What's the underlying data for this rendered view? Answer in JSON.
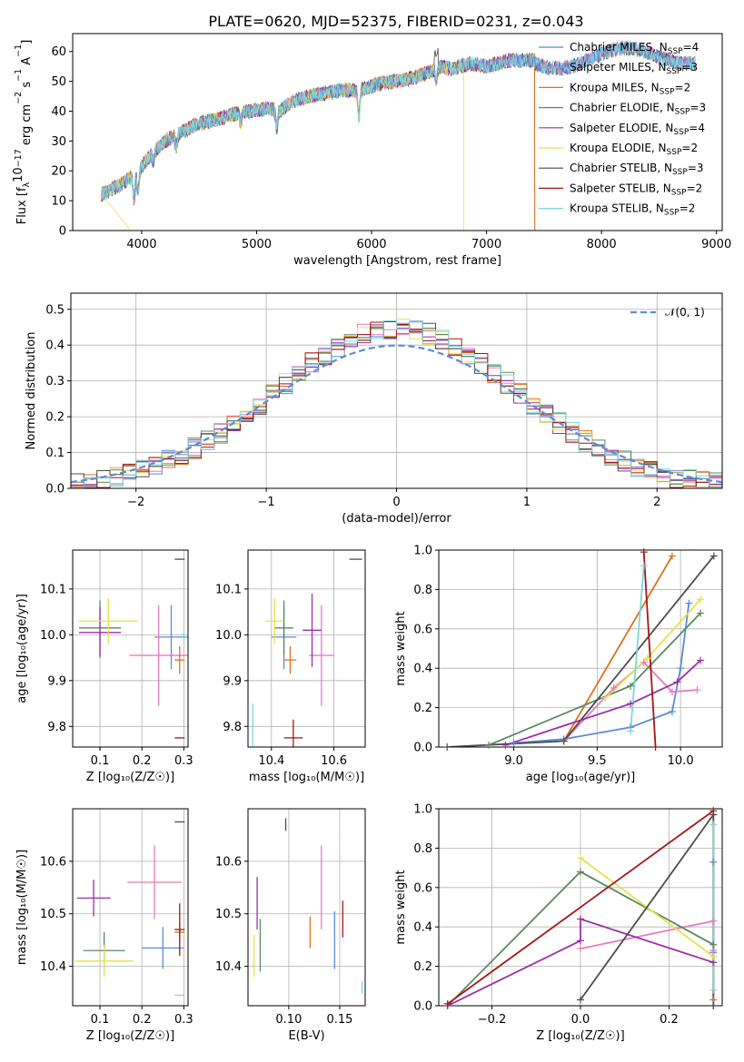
{
  "title": "PLATE=0620, MJD=52375, FIBERID=0231, z=0.043",
  "colors": {
    "Chabrier MILES": "#5b8bd6",
    "Salpeter MILES": "#e67bbf",
    "Kroupa MILES": "#d9731c",
    "Chabrier ELODIE": "#5a8a5e",
    "Salpeter ELODIE": "#9a2fa8",
    "Kroupa ELODIE": "#e8e04a",
    "Chabrier STELIB": "#4d4d4d",
    "Salpeter STELIB": "#a51515",
    "Kroupa STELIB": "#7fd6e0"
  },
  "chart_data": [
    {
      "id": "spectrum",
      "type": "line",
      "xlabel": "wavelength [Angstrom, rest frame]",
      "ylabel_parts": [
        "Flux [f",
        "λ",
        "10",
        "−17",
        " erg cm",
        "−2",
        " s",
        "−1",
        " A",
        "−1",
        "]"
      ],
      "xlim": [
        3400,
        9050
      ],
      "ylim": [
        0,
        66
      ],
      "xticks": [
        4000,
        5000,
        6000,
        7000,
        8000,
        9000
      ],
      "yticks": [
        0,
        10,
        20,
        30,
        40,
        50,
        60
      ],
      "continuum": [
        [
          3650,
          12
        ],
        [
          3800,
          15
        ],
        [
          3950,
          19
        ],
        [
          4050,
          24
        ],
        [
          4200,
          30
        ],
        [
          4350,
          33
        ],
        [
          4500,
          36
        ],
        [
          4650,
          37
        ],
        [
          4800,
          39
        ],
        [
          4950,
          40
        ],
        [
          5100,
          41
        ],
        [
          5200,
          40
        ],
        [
          5300,
          43
        ],
        [
          5450,
          45
        ],
        [
          5600,
          46
        ],
        [
          5750,
          47
        ],
        [
          5900,
          47
        ],
        [
          6050,
          49
        ],
        [
          6200,
          50
        ],
        [
          6350,
          51
        ],
        [
          6500,
          53
        ],
        [
          6600,
          55
        ],
        [
          6700,
          54
        ],
        [
          6850,
          56
        ],
        [
          7000,
          55
        ],
        [
          7200,
          57
        ],
        [
          7400,
          57
        ]
      ],
      "legend": [
        {
          "name": "Chabrier MILES",
          "nssp": "4"
        },
        {
          "name": "Salpeter MILES",
          "nssp": "3"
        },
        {
          "name": "Kroupa MILES",
          "nssp": "2"
        },
        {
          "name": "Chabrier ELODIE",
          "nssp": "3"
        },
        {
          "name": "Salpeter ELODIE",
          "nssp": "4"
        },
        {
          "name": "Kroupa ELODIE",
          "nssp": "2"
        },
        {
          "name": "Chabrier STELIB",
          "nssp": "3"
        },
        {
          "name": "Salpeter STELIB",
          "nssp": "2"
        },
        {
          "name": "Kroupa STELIB",
          "nssp": "2"
        }
      ],
      "legend_loc": "upper right",
      "grid": false
    },
    {
      "id": "residuals",
      "type": "histogram",
      "xlabel": "(data-model)/error",
      "ylabel": "Normed distribution",
      "xlim": [
        -2.5,
        2.5
      ],
      "ylim": [
        0,
        0.545
      ],
      "xticks": [
        -2,
        -1,
        0,
        1,
        2
      ],
      "yticks": [
        0.0,
        0.1,
        0.2,
        0.3,
        0.4,
        0.5
      ],
      "reference_curve": "𝒩(0, 1)",
      "legend_loc": "upper right",
      "grid": true,
      "bin_width": 0.1
    },
    {
      "id": "age_vs_Z",
      "type": "errorbar",
      "xlabel": "Z [log₁₀(Z/Z☉)]",
      "ylabel": "age  [log₁₀(age/yr)]",
      "xlim": [
        0.035,
        0.31
      ],
      "ylim": [
        9.755,
        10.185
      ],
      "xticks": [
        0.1,
        0.2,
        0.3
      ],
      "yticks": [
        9.8,
        9.9,
        10.0,
        10.1
      ],
      "grid": true,
      "points": [
        {
          "model": "Chabrier MILES",
          "x": 0.27,
          "xerr": 0.04,
          "y": 9.995,
          "yerr": 0.07
        },
        {
          "model": "Salpeter MILES",
          "x": 0.24,
          "xerr": 0.07,
          "y": 9.955,
          "yerr": 0.11
        },
        {
          "model": "Kroupa MILES",
          "x": 0.29,
          "xerr": 0.012,
          "y": 9.945,
          "yerr": 0.03
        },
        {
          "model": "Chabrier ELODIE",
          "x": 0.1,
          "xerr": 0.05,
          "y": 10.015,
          "yerr": 0.06
        },
        {
          "model": "Salpeter ELODIE",
          "x": 0.1,
          "xerr": 0.05,
          "y": 10.005,
          "yerr": 0.055
        },
        {
          "model": "Kroupa ELODIE",
          "x": 0.12,
          "xerr": 0.07,
          "y": 10.03,
          "yerr": 0.05
        },
        {
          "model": "Chabrier STELIB",
          "x": 0.29,
          "xerr": 0.012,
          "y": 10.165,
          "yerr": 0.0
        },
        {
          "model": "Salpeter STELIB",
          "x": 0.29,
          "xerr": 0.012,
          "y": 9.775,
          "yerr": 0.0
        },
        {
          "model": "Kroupa STELIB",
          "x": 0.3,
          "xerr": 0.004,
          "y": 10.0,
          "yerr": 0.005
        }
      ]
    },
    {
      "id": "age_vs_mass",
      "type": "errorbar",
      "xlabel": "mass [log₁₀(M/M☉)]",
      "ylabel": "",
      "xlim": [
        10.325,
        10.7
      ],
      "ylim": [
        9.755,
        10.185
      ],
      "xticks": [
        10.4,
        10.6
      ],
      "yticks": [
        9.8,
        9.9,
        10.0,
        10.1
      ],
      "grid": true,
      "points": [
        {
          "model": "Chabrier MILES",
          "x": 10.44,
          "xerr": 0.04,
          "y": 9.995,
          "yerr": 0.07
        },
        {
          "model": "Salpeter MILES",
          "x": 10.56,
          "xerr": 0.04,
          "y": 9.955,
          "yerr": 0.11
        },
        {
          "model": "Kroupa MILES",
          "x": 10.46,
          "xerr": 0.02,
          "y": 9.945,
          "yerr": 0.03
        },
        {
          "model": "Chabrier ELODIE",
          "x": 10.44,
          "xerr": 0.03,
          "y": 10.015,
          "yerr": 0.06
        },
        {
          "model": "Salpeter ELODIE",
          "x": 10.53,
          "xerr": 0.03,
          "y": 10.01,
          "yerr": 0.08
        },
        {
          "model": "Kroupa ELODIE",
          "x": 10.41,
          "xerr": 0.03,
          "y": 10.03,
          "yerr": 0.05
        },
        {
          "model": "Chabrier STELIB",
          "x": 10.67,
          "xerr": 0.02,
          "y": 10.165,
          "yerr": 0.0
        },
        {
          "model": "Salpeter STELIB",
          "x": 10.47,
          "xerr": 0.03,
          "y": 9.775,
          "yerr": 0.04
        },
        {
          "model": "Kroupa STELIB",
          "x": 10.34,
          "xerr": 0.005,
          "y": 9.8,
          "yerr": 0.05
        }
      ]
    },
    {
      "id": "weight_vs_age",
      "type": "line",
      "xlabel": "age  [log₁₀(age/yr)]",
      "ylabel": "mass weight",
      "xlim": [
        8.55,
        10.25
      ],
      "ylim": [
        0,
        1
      ],
      "xticks": [
        9.0,
        9.5,
        10.0
      ],
      "yticks": [
        0.0,
        0.2,
        0.4,
        0.6,
        0.8,
        1.0
      ],
      "grid": true,
      "series": [
        {
          "model": "Chabrier MILES",
          "x": [
            9.0,
            9.3,
            9.7,
            9.95,
            10.0,
            10.05
          ],
          "y": [
            0.02,
            0.04,
            0.1,
            0.18,
            0.4,
            0.73
          ]
        },
        {
          "model": "Salpeter MILES",
          "x": [
            9.3,
            9.6,
            9.78,
            9.95,
            10.1
          ],
          "y": [
            0.03,
            0.3,
            0.43,
            0.28,
            0.29
          ]
        },
        {
          "model": "Kroupa MILES",
          "x": [
            9.3,
            9.95
          ],
          "y": [
            0.03,
            0.97
          ]
        },
        {
          "model": "Chabrier ELODIE",
          "x": [
            8.85,
            9.7,
            10.12
          ],
          "y": [
            0.01,
            0.31,
            0.68
          ]
        },
        {
          "model": "Salpeter ELODIE",
          "x": [
            8.95,
            9.7,
            9.98,
            10.12
          ],
          "y": [
            0.01,
            0.22,
            0.33,
            0.44
          ]
        },
        {
          "model": "Kroupa ELODIE",
          "x": [
            9.55,
            9.8,
            10.12
          ],
          "y": [
            0.25,
            0.45,
            0.75
          ]
        },
        {
          "model": "Chabrier STELIB",
          "x": [
            8.6,
            9.3,
            10.2
          ],
          "y": [
            0.0,
            0.03,
            0.97
          ]
        },
        {
          "model": "Salpeter STELIB",
          "x": [
            9.78,
            9.85
          ],
          "y": [
            0.99,
            0.0
          ]
        },
        {
          "model": "Kroupa STELIB",
          "x": [
            9.7,
            9.78
          ],
          "y": [
            0.08,
            0.92
          ]
        }
      ]
    },
    {
      "id": "mass_vs_Z",
      "type": "errorbar",
      "xlabel": "Z [log₁₀(Z/Z☉)]",
      "ylabel": "mass [log₁₀(M/M☉)]",
      "xlim": [
        0.035,
        0.31
      ],
      "ylim": [
        10.325,
        10.7
      ],
      "xticks": [
        0.1,
        0.2,
        0.3
      ],
      "yticks": [
        10.4,
        10.5,
        10.6
      ],
      "grid": true,
      "points": [
        {
          "model": "Chabrier MILES",
          "x": 0.25,
          "xerr": 0.05,
          "y": 10.435,
          "yerr": 0.04
        },
        {
          "model": "Salpeter MILES",
          "x": 0.23,
          "xerr": 0.065,
          "y": 10.56,
          "yerr": 0.07
        },
        {
          "model": "Kroupa MILES",
          "x": 0.29,
          "xerr": 0.012,
          "y": 10.465,
          "yerr": 0.02
        },
        {
          "model": "Chabrier ELODIE",
          "x": 0.11,
          "xerr": 0.05,
          "y": 10.43,
          "yerr": 0.035
        },
        {
          "model": "Salpeter ELODIE",
          "x": 0.085,
          "xerr": 0.04,
          "y": 10.53,
          "yerr": 0.035
        },
        {
          "model": "Kroupa ELODIE",
          "x": 0.11,
          "xerr": 0.07,
          "y": 10.41,
          "yerr": 0.03
        },
        {
          "model": "Chabrier STELIB",
          "x": 0.29,
          "xerr": 0.012,
          "y": 10.675,
          "yerr": 0.0
        },
        {
          "model": "Salpeter STELIB",
          "x": 0.29,
          "xerr": 0.012,
          "y": 10.47,
          "yerr": 0.05
        },
        {
          "model": "Kroupa STELIB",
          "x": 0.29,
          "xerr": 0.012,
          "y": 10.345,
          "yerr": 0.0
        }
      ]
    },
    {
      "id": "mass_vs_EBV",
      "type": "errorbar",
      "xlabel": "E(B-V)",
      "ylabel": "",
      "xlim": [
        0.06,
        0.175
      ],
      "ylim": [
        10.325,
        10.7
      ],
      "xticks": [
        0.1,
        0.15
      ],
      "yticks": [
        10.4,
        10.5,
        10.6
      ],
      "grid": true,
      "points": [
        {
          "model": "Chabrier MILES",
          "x": 0.145,
          "xerr": 0.0,
          "y": 10.45,
          "yerr": 0.055
        },
        {
          "model": "Salpeter MILES",
          "x": 0.132,
          "xerr": 0.0,
          "y": 10.55,
          "yerr": 0.08
        },
        {
          "model": "Kroupa MILES",
          "x": 0.121,
          "xerr": 0.0,
          "y": 10.465,
          "yerr": 0.03
        },
        {
          "model": "Chabrier ELODIE",
          "x": 0.072,
          "xerr": 0.0,
          "y": 10.44,
          "yerr": 0.05
        },
        {
          "model": "Salpeter ELODIE",
          "x": 0.069,
          "xerr": 0.0,
          "y": 10.52,
          "yerr": 0.05
        },
        {
          "model": "Kroupa ELODIE",
          "x": 0.066,
          "xerr": 0.0,
          "y": 10.42,
          "yerr": 0.04
        },
        {
          "model": "Chabrier STELIB",
          "x": 0.097,
          "xerr": 0.0,
          "y": 10.67,
          "yerr": 0.012
        },
        {
          "model": "Salpeter STELIB",
          "x": 0.153,
          "xerr": 0.0,
          "y": 10.49,
          "yerr": 0.035
        },
        {
          "model": "Kroupa STELIB",
          "x": 0.172,
          "xerr": 0.0,
          "y": 10.36,
          "yerr": 0.012
        }
      ]
    },
    {
      "id": "weight_vs_Z",
      "type": "line",
      "xlabel": "Z [log₁₀(Z/Z☉)]",
      "ylabel": "mass weight",
      "xlim": [
        -0.32,
        0.32
      ],
      "ylim": [
        0,
        1
      ],
      "xticks": [
        -0.2,
        0.0,
        0.2
      ],
      "yticks": [
        0.0,
        0.2,
        0.4,
        0.6,
        0.8,
        1.0
      ],
      "grid": true,
      "series": [
        {
          "model": "Chabrier MILES",
          "x": [
            0.3,
            0.3,
            0.3
          ],
          "y": [
            0.27,
            0.73,
            0.0
          ]
        },
        {
          "model": "Salpeter MILES",
          "x": [
            0.0,
            0.3,
            0.3
          ],
          "y": [
            0.29,
            0.43,
            0.28
          ]
        },
        {
          "model": "Kroupa MILES",
          "x": [
            0.3,
            0.3
          ],
          "y": [
            0.97,
            0.03
          ]
        },
        {
          "model": "Chabrier ELODIE",
          "x": [
            -0.3,
            0.0,
            0.3
          ],
          "y": [
            0.0,
            0.68,
            0.31
          ]
        },
        {
          "model": "Salpeter ELODIE",
          "x": [
            -0.3,
            0.0,
            0.0,
            0.3
          ],
          "y": [
            0.0,
            0.33,
            0.44,
            0.22
          ]
        },
        {
          "model": "Kroupa ELODIE",
          "x": [
            0.0,
            0.3
          ],
          "y": [
            0.75,
            0.25
          ]
        },
        {
          "model": "Chabrier STELIB",
          "x": [
            0.0,
            0.3,
            0.3
          ],
          "y": [
            0.03,
            0.97,
            0.0
          ]
        },
        {
          "model": "Salpeter STELIB",
          "x": [
            -0.3,
            0.3
          ],
          "y": [
            0.01,
            0.99
          ]
        },
        {
          "model": "Kroupa STELIB",
          "x": [
            0.3,
            0.3
          ],
          "y": [
            0.92,
            0.08
          ]
        }
      ]
    }
  ]
}
